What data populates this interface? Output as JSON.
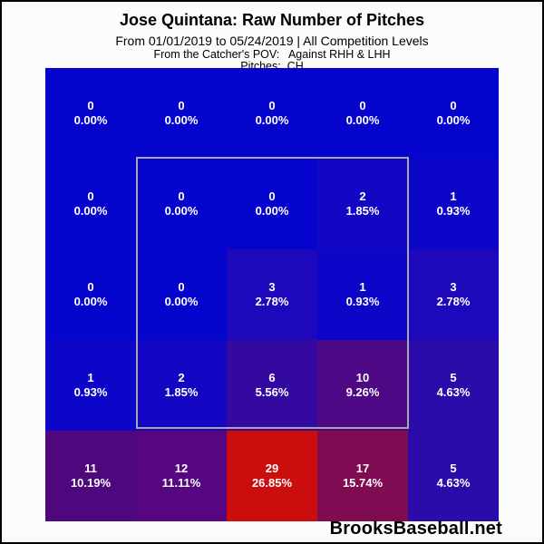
{
  "header": {
    "title": "Jose Quintana: Raw Number of Pitches",
    "subtitle1": "From 01/01/2019 to 05/24/2019 | All Competition Levels",
    "subtitle2": "From the Catcher's POV:   Against RHH & LHH",
    "subtitle3": "Pitches:  CH"
  },
  "footer": {
    "brand": "BrooksBaseball.net"
  },
  "chart_data": {
    "type": "heatmap",
    "title": "Jose Quintana: Raw Number of Pitches",
    "date_range": "From 01/01/2019 to 05/24/2019",
    "competition_level": "All Competition Levels",
    "view": "From the Catcher's POV",
    "batters": "Against RHH & LHH",
    "pitch_type": "CH",
    "rows": 5,
    "cols": 5,
    "cells": [
      [
        {
          "count": 0,
          "pct": "0.00%",
          "color": "#0505ce"
        },
        {
          "count": 0,
          "pct": "0.00%",
          "color": "#0505ce"
        },
        {
          "count": 0,
          "pct": "0.00%",
          "color": "#0505ce"
        },
        {
          "count": 0,
          "pct": "0.00%",
          "color": "#0505ce"
        },
        {
          "count": 0,
          "pct": "0.00%",
          "color": "#0505ce"
        }
      ],
      [
        {
          "count": 0,
          "pct": "0.00%",
          "color": "#0505ce"
        },
        {
          "count": 0,
          "pct": "0.00%",
          "color": "#0505ce"
        },
        {
          "count": 0,
          "pct": "0.00%",
          "color": "#0505ce"
        },
        {
          "count": 2,
          "pct": "1.85%",
          "color": "#1307c3"
        },
        {
          "count": 1,
          "pct": "0.93%",
          "color": "#0b06c8"
        }
      ],
      [
        {
          "count": 0,
          "pct": "0.00%",
          "color": "#0505ce"
        },
        {
          "count": 0,
          "pct": "0.00%",
          "color": "#0505ce"
        },
        {
          "count": 3,
          "pct": "2.78%",
          "color": "#1d09bb"
        },
        {
          "count": 1,
          "pct": "0.93%",
          "color": "#0b06c8"
        },
        {
          "count": 3,
          "pct": "2.78%",
          "color": "#1d09bb"
        }
      ],
      [
        {
          "count": 1,
          "pct": "0.93%",
          "color": "#0b06c8"
        },
        {
          "count": 2,
          "pct": "1.85%",
          "color": "#1307c3"
        },
        {
          "count": 6,
          "pct": "5.56%",
          "color": "#3409a0"
        },
        {
          "count": 10,
          "pct": "9.26%",
          "color": "#4d0886"
        },
        {
          "count": 5,
          "pct": "4.63%",
          "color": "#2b0baa"
        }
      ],
      [
        {
          "count": 11,
          "pct": "10.19%",
          "color": "#4e077c"
        },
        {
          "count": 12,
          "pct": "11.11%",
          "color": "#560680"
        },
        {
          "count": 29,
          "pct": "26.85%",
          "color": "#cc0d0d"
        },
        {
          "count": 17,
          "pct": "15.74%",
          "color": "#7f0b53"
        },
        {
          "count": 5,
          "pct": "4.63%",
          "color": "#2b0baa"
        }
      ]
    ],
    "strike_zone": {
      "description": "gray outline covering inner 3x3 cells (rows 2-4, cols 2-4)",
      "border_color": "#a8a8a8"
    },
    "legend_position": "none",
    "grid": "off"
  }
}
